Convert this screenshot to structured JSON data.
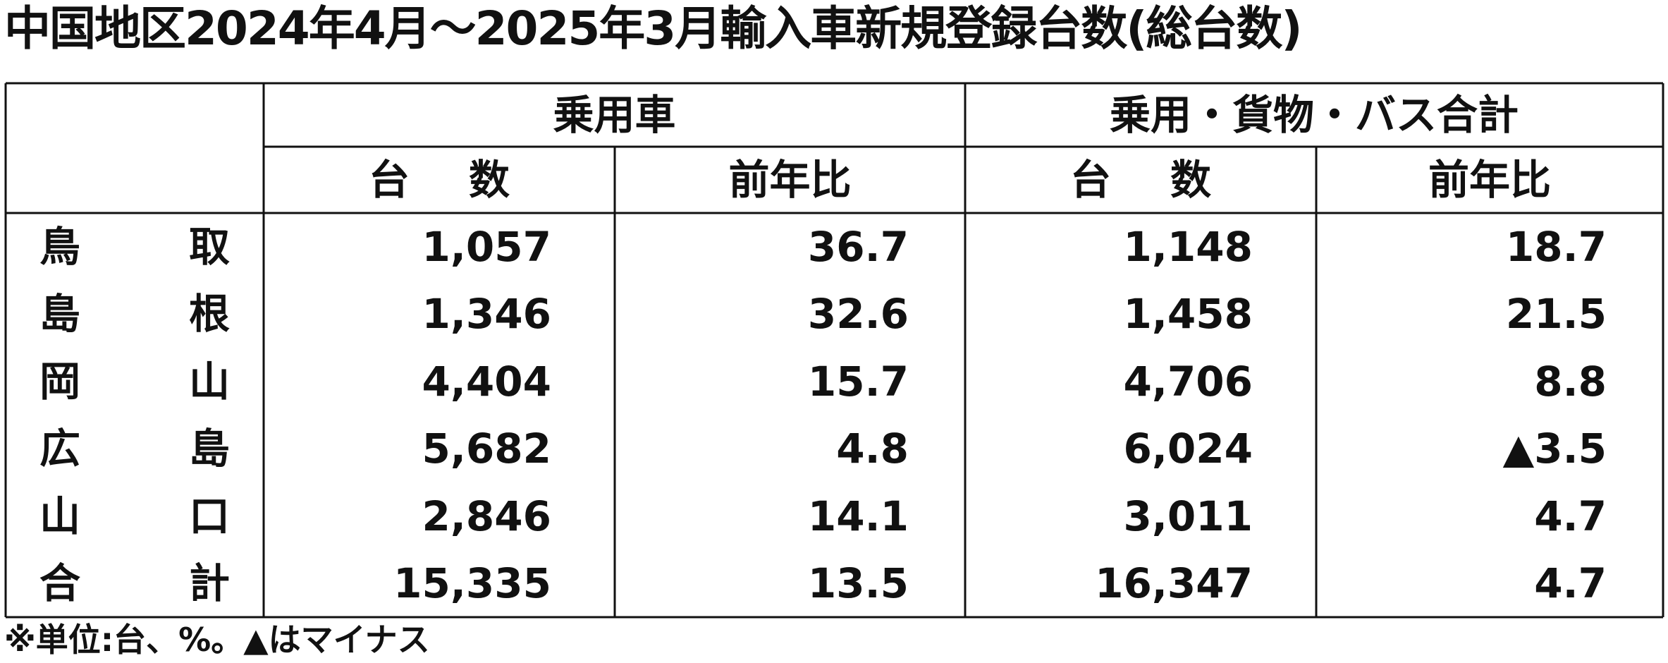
{
  "title": "中国地区2024年4月～2025年3月輸入車新規登録台数(総台数)",
  "table": {
    "group_headers": [
      "乗用車",
      "乗用・貨物・バス合計"
    ],
    "sub_headers": [
      "台 数",
      "前年比",
      "台 数",
      "前年比"
    ],
    "rows": [
      [
        "鳥 取",
        "1,057",
        "36.7",
        "1,148",
        "18.7"
      ],
      [
        "島 根",
        "1,346",
        "32.6",
        "1,458",
        "21.5"
      ],
      [
        "岡 山",
        "4,404",
        "15.7",
        "4,706",
        "8.8"
      ],
      [
        "広 島",
        "5,682",
        "4.8",
        "6,024",
        "▲3.5"
      ],
      [
        "山 口",
        "2,846",
        "14.1",
        "3,011",
        "4.7"
      ],
      [
        "合 計",
        "15,335",
        "13.5",
        "16,347",
        "4.7"
      ]
    ]
  },
  "footnote": "※単位:台、%。▲はマイナス"
}
